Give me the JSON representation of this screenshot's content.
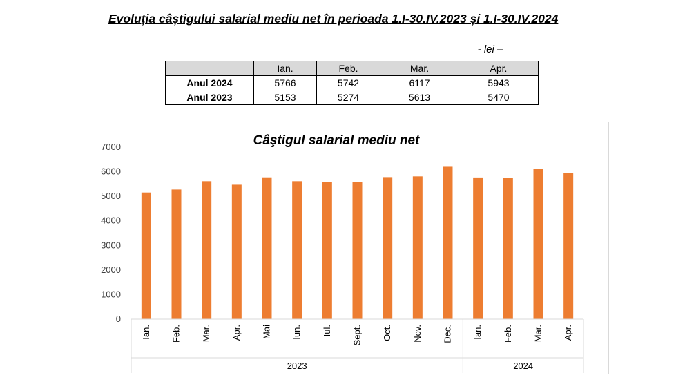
{
  "document": {
    "title": "Evoluția câștigului salarial mediu net în perioada 1.I-30.IV.2023 și 1.I-30.IV.2024",
    "unit_note": "- lei –"
  },
  "table": {
    "headers": [
      "",
      "Ian.",
      "Feb.",
      "Mar.",
      "Apr."
    ],
    "rows": [
      {
        "label": "Anul 2024",
        "values": [
          "5766",
          "5742",
          "6117",
          "5943"
        ]
      },
      {
        "label": "Anul 2023",
        "values": [
          "5153",
          "5274",
          "5613",
          "5470"
        ]
      }
    ]
  },
  "chart_data": {
    "type": "bar",
    "title": "Câştigul salarial  mediu net",
    "categories": [
      "Ian.",
      "Feb.",
      "Mar.",
      "Apr.",
      "Mai",
      "Iun.",
      "Iul.",
      "Sept.",
      "Oct.",
      "Nov.",
      "Dec.",
      "Ian.",
      "Feb.",
      "Mar.",
      "Apr."
    ],
    "groups": [
      {
        "label": "2023",
        "count": 11
      },
      {
        "label": "2024",
        "count": 4
      }
    ],
    "values": [
      5153,
      5274,
      5613,
      5470,
      5771,
      5613,
      5590,
      5590,
      5780,
      5810,
      6200,
      5766,
      5742,
      6117,
      5943
    ],
    "ylim": [
      0,
      7000
    ],
    "yticks": [
      0,
      1000,
      2000,
      3000,
      4000,
      5000,
      6000,
      7000
    ],
    "bar_color": "#ED7D31",
    "grid": false,
    "legend": "none"
  }
}
